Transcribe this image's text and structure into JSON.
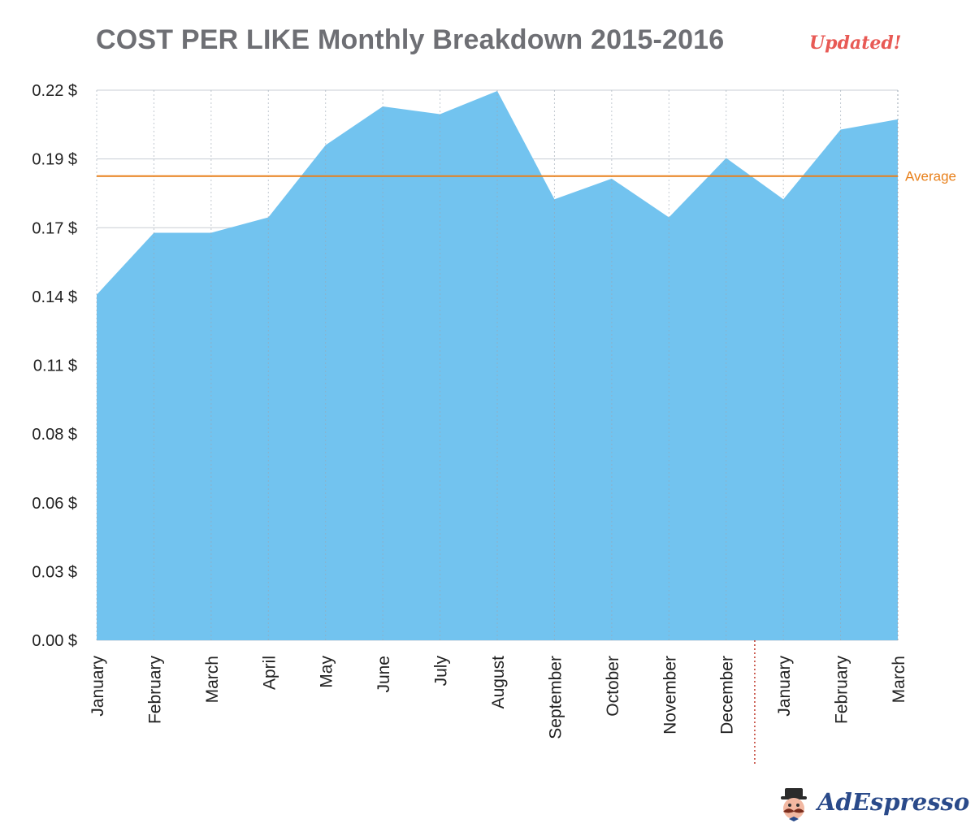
{
  "header": {
    "title": "COST PER LIKE Monthly Breakdown 2015-2016",
    "badge": "Updated!"
  },
  "logo": {
    "text": "AdEspresso",
    "icon": "mascot-icon"
  },
  "colors": {
    "area": "#72c3ef",
    "average": "#e8801b",
    "badge": "#e85a55",
    "divider": "#c0392b",
    "grid": "#b0b8c0"
  },
  "chart_data": {
    "type": "area",
    "title": "COST PER LIKE Monthly Breakdown 2015-2016",
    "categories": [
      "January",
      "February",
      "March",
      "April",
      "May",
      "June",
      "July",
      "August",
      "September",
      "October",
      "November",
      "December",
      "January",
      "February",
      "March"
    ],
    "values": [
      0.134,
      0.158,
      0.158,
      0.164,
      0.192,
      0.207,
      0.204,
      0.213,
      0.171,
      0.179,
      0.164,
      0.187,
      0.171,
      0.198,
      0.202
    ],
    "yticks": [
      "0.00 $",
      "0.03 $",
      "0.06 $",
      "0.08 $",
      "0.11 $",
      "0.14 $",
      "0.17 $",
      "0.19 $",
      "0.22 $"
    ],
    "ylim": [
      0,
      0.2133
    ],
    "average": {
      "label": "Average",
      "value": 0.18
    },
    "year_divider_after_index": 11,
    "grid": true
  }
}
